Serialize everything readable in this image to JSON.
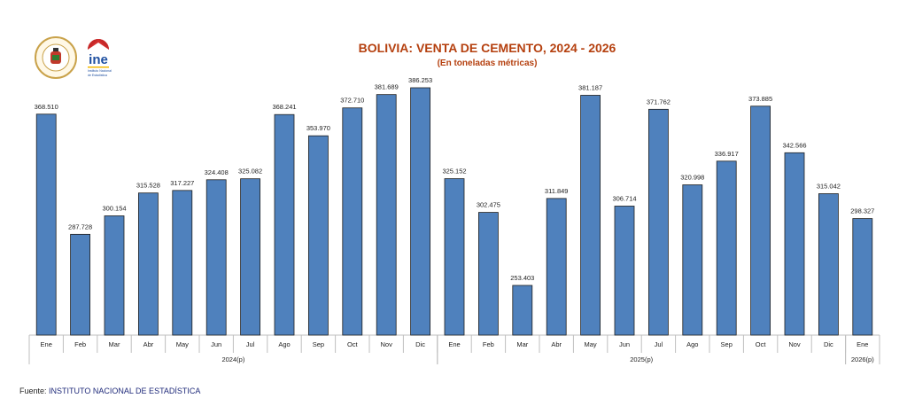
{
  "logos": {
    "seal_text": "PRESIDENCIA DEL ESTADO PLURINACIONAL DE BOLIVIA",
    "ine_text": "ine",
    "ine_subtext": "Instituto Nacional de Estadística"
  },
  "source": {
    "label": "Fuente:",
    "value": "INSTITUTO NACIONAL DE ESTADÍSTICA"
  },
  "colors": {
    "bar": "#4f81bd",
    "bar_edge": "#1f1f1f",
    "title": "#b5400f"
  },
  "chart_data": {
    "type": "bar",
    "title": "BOLIVIA: VENTA DE CEMENTO, 2024 - 2026",
    "subtitle": "(En toneladas métricas)",
    "xlabel": "",
    "ylabel": "",
    "ylim": [
      220,
      400
    ],
    "grid": false,
    "categories": [
      "Ene",
      "Feb",
      "Mar",
      "Abr",
      "May",
      "Jun",
      "Jul",
      "Ago",
      "Sep",
      "Oct",
      "Nov",
      "Dic",
      "Ene",
      "Feb",
      "Mar",
      "Abr",
      "May",
      "Jun",
      "Jul",
      "Ago",
      "Sep",
      "Oct",
      "Nov",
      "Dic",
      "Ene"
    ],
    "values": [
      368.51,
      287.728,
      300.154,
      315.528,
      317.227,
      324.408,
      325.082,
      368.241,
      353.97,
      372.71,
      381.689,
      386.253,
      325.152,
      302.475,
      253.403,
      311.849,
      381.187,
      306.714,
      371.762,
      320.998,
      336.917,
      373.885,
      342.566,
      315.042,
      298.327
    ],
    "value_labels": [
      "368.510",
      "287.728",
      "300.154",
      "315.528",
      "317.227",
      "324.408",
      "325.082",
      "368.241",
      "353.970",
      "372.710",
      "381.689",
      "386.253",
      "325.152",
      "302.475",
      "253.403",
      "311.849",
      "381.187",
      "306.714",
      "371.762",
      "320.998",
      "336.917",
      "373.885",
      "342.566",
      "315.042",
      "298.327"
    ],
    "groups": [
      {
        "label": "2024(p)",
        "count": 12
      },
      {
        "label": "2025(p)",
        "count": 12
      },
      {
        "label": "2026(p)",
        "count": 1
      }
    ]
  }
}
